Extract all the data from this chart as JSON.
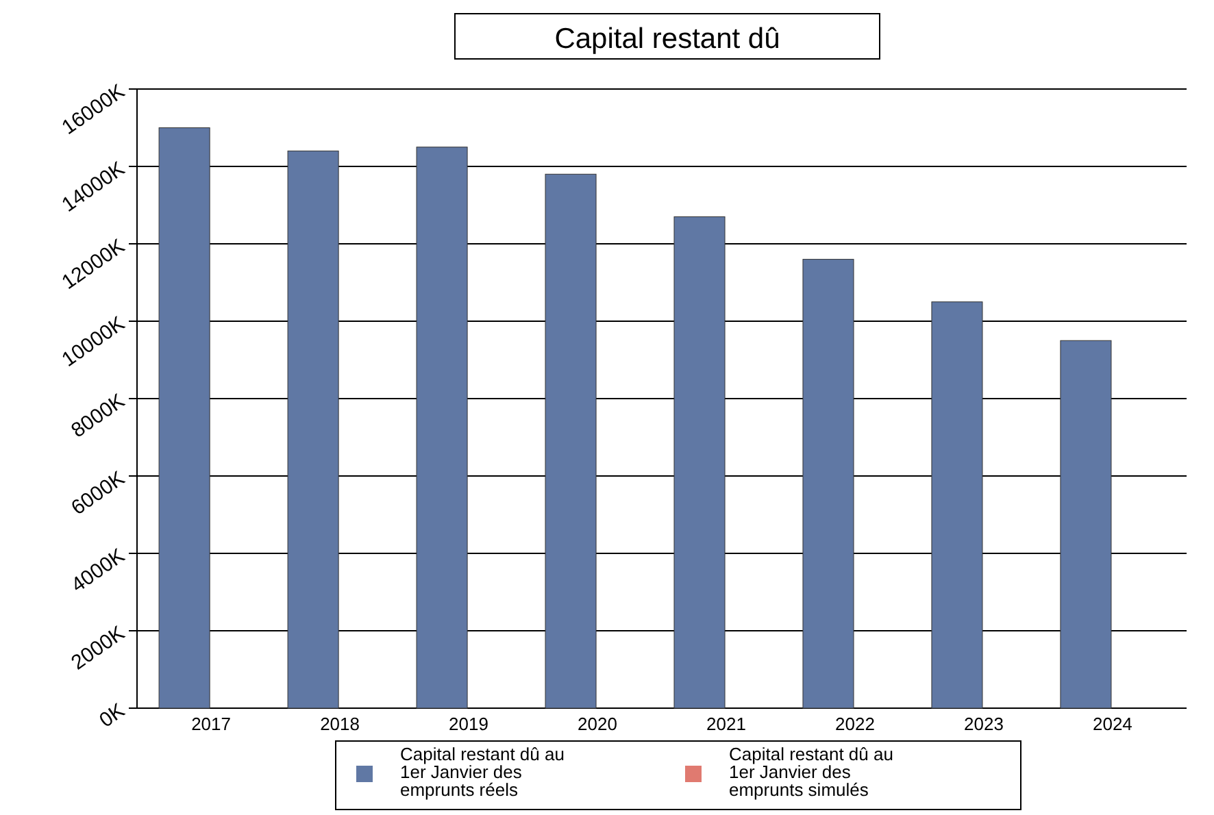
{
  "chart_data": {
    "type": "bar",
    "title": "Capital restant dû",
    "categories": [
      "2017",
      "2018",
      "2019",
      "2020",
      "2021",
      "2022",
      "2023",
      "2024"
    ],
    "series": [
      {
        "name": "Capital restant dû au 1er Janvier des emprunts réels",
        "color": "#6078a4",
        "values": [
          15000,
          14400,
          14500,
          13800,
          12700,
          11600,
          10500,
          9500
        ]
      },
      {
        "name": "Capital restant dû au 1er Janvier des emprunts simulés",
        "color": "#e07a70",
        "values": [
          0,
          0,
          0,
          0,
          0,
          0,
          0,
          0
        ]
      }
    ],
    "ylim": [
      0,
      16000
    ],
    "yticks": [
      {
        "value": 0,
        "label": "0K"
      },
      {
        "value": 2000,
        "label": "2000K"
      },
      {
        "value": 4000,
        "label": "4000K"
      },
      {
        "value": 6000,
        "label": "6000K"
      },
      {
        "value": 8000,
        "label": "8000K"
      },
      {
        "value": 10000,
        "label": "10000K"
      },
      {
        "value": 12000,
        "label": "12000K"
      },
      {
        "value": 14000,
        "label": "14000K"
      },
      {
        "value": 16000,
        "label": "16000K"
      }
    ],
    "grid": "y",
    "legend": "bottom"
  }
}
